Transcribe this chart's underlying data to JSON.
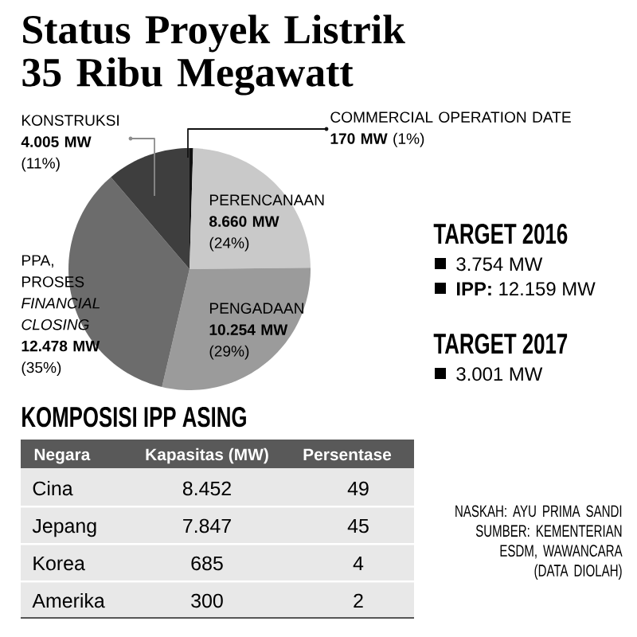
{
  "chart_data": [
    {
      "type": "pie",
      "title": "Status Proyek Listrik 35 Ribu Megawatt",
      "categories": [
        "COMMERCIAL OPERATION DATE",
        "PERENCANAAN",
        "PENGADAAN",
        "PPA, PROSES *FINANCIAL CLOSING*",
        "KONSTRUKSI"
      ],
      "values": [
        170,
        8660,
        10254,
        12478,
        4005
      ],
      "colors": [
        "#111111",
        "#c9c9c9",
        "#9b9b9b",
        "#6c6c6c",
        "#3e3e3e"
      ],
      "value_labels": [
        "**170 MW** (1%)",
        "**8.660 MW** (24%)",
        "**10.254 MW** (29%)",
        "**12.478 MW** (35%)",
        "**4.005 MW** (11%)"
      ]
    },
    {
      "type": "other",
      "title": "TARGET 2016",
      "annotations": [
        "3.754 MW",
        "**IPP:** 12.159 MW"
      ]
    },
    {
      "type": "other",
      "title": "TARGET 2017",
      "annotations": [
        "3.001 MW"
      ]
    },
    {
      "type": "other",
      "title": "KOMPOSISI IPP ASING",
      "xlabel": "Negara",
      "categories": [
        "Cina",
        "Jepang",
        "Korea",
        "Amerika"
      ],
      "series": [
        {
          "name": "Kapasitas (MW)",
          "values": [
            8452,
            7847,
            685,
            300
          ],
          "value_labels": [
            "8.452",
            "7.847",
            "685",
            "300"
          ]
        },
        {
          "name": "Persentase",
          "values": [
            49,
            45,
            4,
            2
          ]
        }
      ],
      "data_labels": true,
      "annotations": [
        "NASKAH: AYU PRIMA SANDI",
        "SUMBER: KEMENTERIAN ESDM, WAWANCARA",
        "(DATA DIOLAH)"
      ]
    }
  ]
}
